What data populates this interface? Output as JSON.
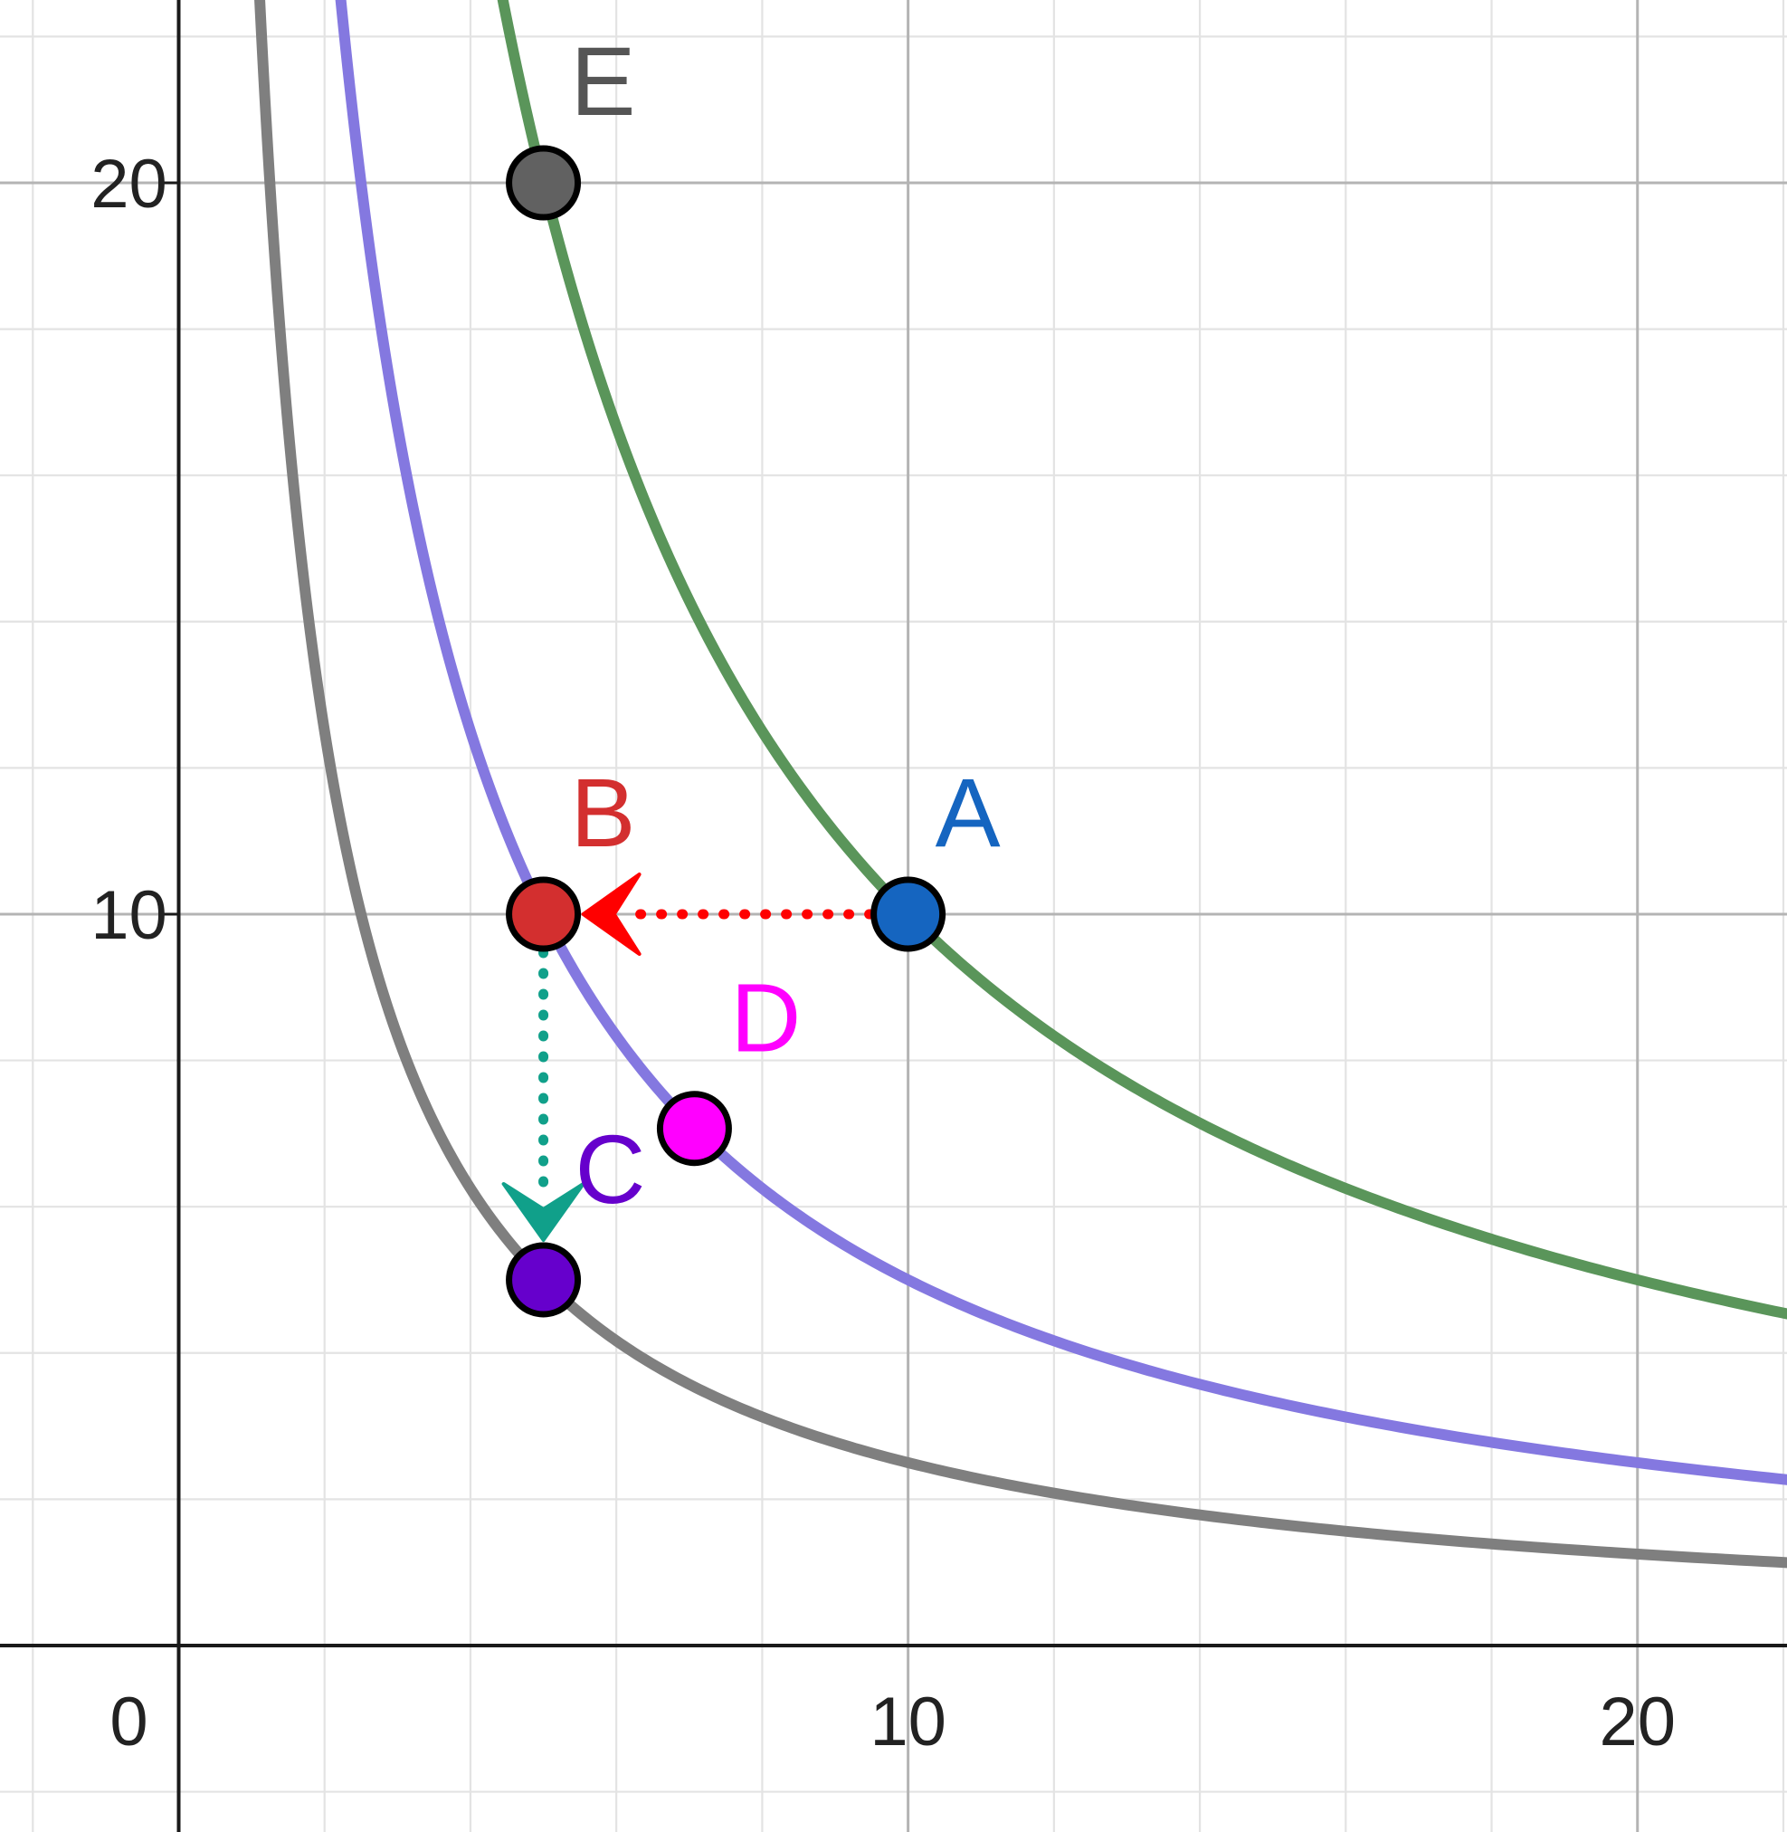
{
  "chart_data": {
    "type": "line",
    "title": "",
    "xlabel": "",
    "ylabel": "",
    "xlim": [
      -2.45,
      22.05
    ],
    "ylim": [
      -2.55,
      22.5
    ],
    "grid": {
      "major": 10,
      "minor": 2
    },
    "x_ticks": [
      {
        "value": 0,
        "label": "0"
      },
      {
        "value": 10,
        "label": "10"
      },
      {
        "value": 20,
        "label": "20"
      }
    ],
    "y_ticks": [
      {
        "value": 10,
        "label": "10"
      },
      {
        "value": 20,
        "label": "20"
      }
    ],
    "series": [
      {
        "function": "y = 25/x",
        "k": 25,
        "color": "#7f7f7f"
      },
      {
        "function": "y = 50/x",
        "k": 50,
        "color": "#8478e0"
      },
      {
        "function": "y = 100/x",
        "k": 100,
        "color": "#5a955a"
      }
    ],
    "points": [
      {
        "label": "A",
        "x": 10,
        "y": 10,
        "fill": "#1565c0",
        "label_color": "#1565c0"
      },
      {
        "label": "B",
        "x": 5,
        "y": 10,
        "fill": "#d32f2f",
        "label_color": "#d32f2f"
      },
      {
        "label": "C",
        "x": 5,
        "y": 5,
        "fill": "#6600cc",
        "label_color": "#6600cc"
      },
      {
        "label": "D",
        "x": 7.07,
        "y": 7.07,
        "fill": "#ff00ff",
        "label_color": "#ff00ff"
      },
      {
        "label": "E",
        "x": 5,
        "y": 20,
        "fill": "#616161",
        "label_color": "#555555"
      }
    ],
    "arrows": [
      {
        "from": "A",
        "to": "B",
        "color": "#ff0000",
        "style": "dotted"
      },
      {
        "from": "B",
        "to": "C",
        "color": "#10a08a",
        "style": "dotted"
      }
    ]
  }
}
